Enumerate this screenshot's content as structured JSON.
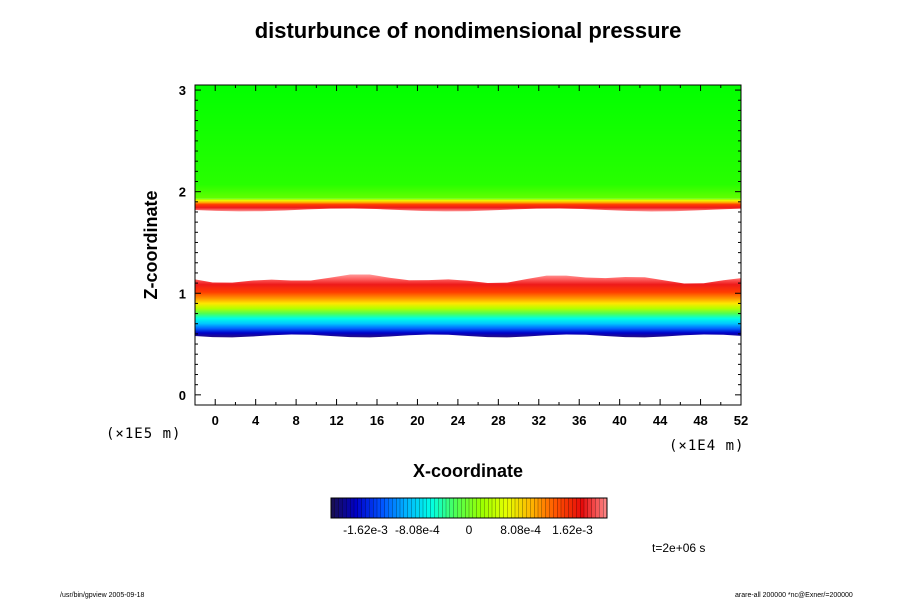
{
  "chart_data": {
    "type": "heatmap",
    "title": "disturbunce of nondimensional pressure",
    "xlabel": "X-coordinate",
    "ylabel": "Z-coordinate",
    "x_unit": "(×1E4 m)",
    "y_unit": "(×1E5 m)",
    "xlim": [
      -2,
      52
    ],
    "ylim": [
      -0.1,
      3.05
    ],
    "x_ticks": [
      "0",
      "4",
      "8",
      "12",
      "16",
      "20",
      "24",
      "28",
      "32",
      "36",
      "40",
      "44",
      "48",
      "52"
    ],
    "x_tick_values": [
      0,
      4,
      8,
      12,
      16,
      20,
      24,
      28,
      32,
      36,
      40,
      44,
      48,
      52
    ],
    "y_ticks": [
      "0",
      "1",
      "2",
      "3"
    ],
    "y_tick_values": [
      0,
      1,
      2,
      3
    ],
    "time_label": "t=2e+06 s",
    "colorbar": {
      "tick_labels": [
        "-1.62e-3",
        "-8.08e-4",
        "0",
        "8.08e-4",
        "1.62e-3"
      ],
      "tick_values": [
        -0.00162,
        -0.000808,
        0,
        0.000808,
        0.00162
      ],
      "min": -0.00216,
      "max": 0.00216,
      "colors": [
        "#1a0f4d",
        "#0000c8",
        "#0050ff",
        "#00b4ff",
        "#00ffe6",
        "#50ff50",
        "#9aff00",
        "#e6ff00",
        "#ffb400",
        "#ff5000",
        "#e60a0a",
        "#ff8c8c"
      ]
    },
    "bands": [
      {
        "z_bottom": 0.58,
        "z_top": 1.18,
        "min_value": -0.0017,
        "max_value": 0.0017
      },
      {
        "z_bottom": 1.82,
        "z_top": 1.93,
        "min_value": 0.0003,
        "max_value": 0.0017
      },
      {
        "z_bottom": 1.93,
        "z_top": 3.05,
        "min_value": 0.0001,
        "max_value": 0.0003
      }
    ]
  },
  "footer": {
    "left_note": "/usr/bin/gpview 2005-09-18",
    "right_note": "arare-all 200000 *nc@Exner/=200000"
  }
}
